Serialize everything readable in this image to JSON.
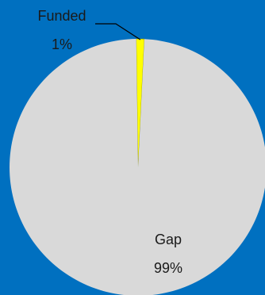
{
  "chart_data": {
    "type": "pie",
    "title": "",
    "slices": [
      {
        "label": "Funded",
        "value": 1,
        "percent_label": "1%",
        "color": "#FFFF00"
      },
      {
        "label": "Gap",
        "value": 99,
        "percent_label": "99%",
        "color": "#D9D9D9"
      }
    ],
    "background_color": "#0070C0",
    "slice_border_color": "#8C8C00",
    "leader_line_color": "#000000",
    "legend": "none"
  }
}
